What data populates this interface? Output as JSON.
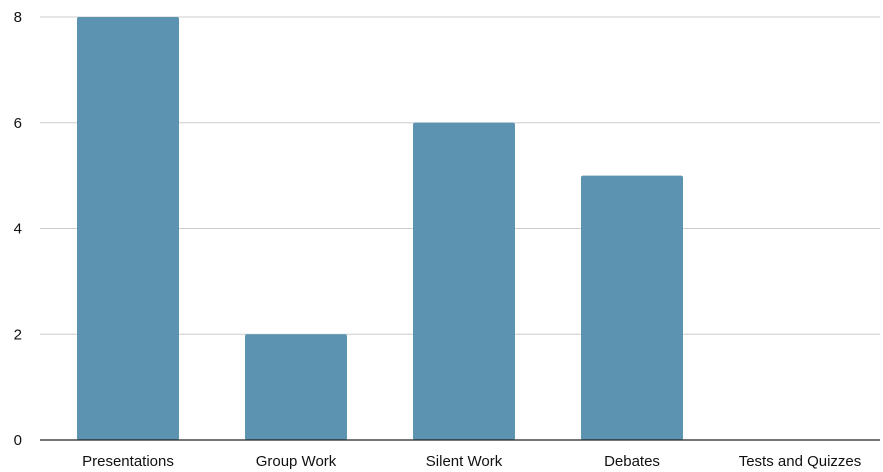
{
  "chart_data": {
    "type": "bar",
    "categories": [
      "Presentations",
      "Group Work",
      "Silent Work",
      "Debates",
      "Tests and Quizzes"
    ],
    "values": [
      8,
      2,
      6,
      5,
      0
    ],
    "title": "",
    "xlabel": "",
    "ylabel": "",
    "ylim": [
      0,
      8
    ],
    "yticks": [
      0,
      2,
      4,
      6,
      8
    ],
    "grid": true,
    "legend": "none",
    "colors": {
      "bar": "#5b93b0",
      "grid": "#cccccc",
      "axis": "#222222"
    }
  }
}
